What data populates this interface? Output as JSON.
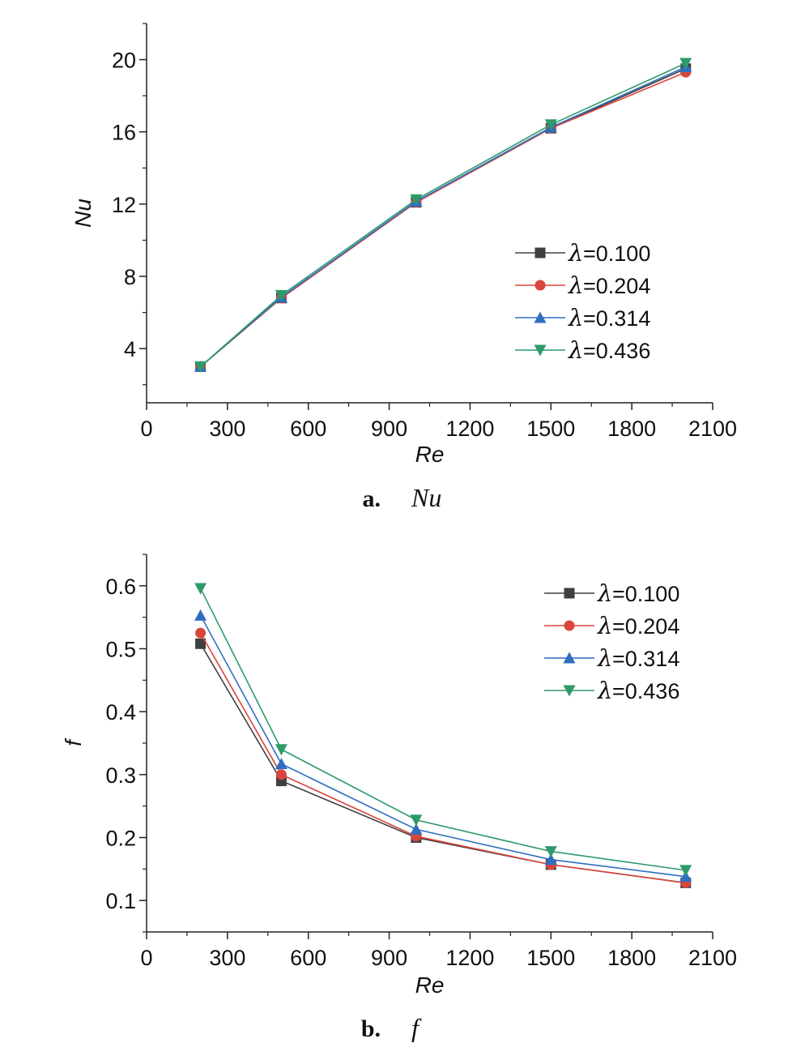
{
  "chart_data": [
    {
      "type": "line",
      "caption_letter": "a.",
      "caption_var": "Nu",
      "xlabel": "Re",
      "ylabel": "Nu",
      "xlim": [
        0,
        2100
      ],
      "ylim": [
        1,
        22
      ],
      "xticks": [
        0,
        300,
        600,
        900,
        1200,
        1500,
        1800,
        2100
      ],
      "yticks": [
        4,
        8,
        12,
        16,
        20
      ],
      "x": [
        200,
        500,
        1000,
        1500,
        2000
      ],
      "legend_position": "bottom-right",
      "series": [
        {
          "name": "=0.100",
          "color": "#404040",
          "marker": "square",
          "values": [
            3.0,
            6.8,
            12.1,
            16.2,
            19.5
          ]
        },
        {
          "name": "=0.204",
          "color": "#d9453c",
          "marker": "circle",
          "values": [
            3.0,
            6.8,
            12.1,
            16.2,
            19.3
          ]
        },
        {
          "name": "=0.314",
          "color": "#2f6fbf",
          "marker": "triangle-up",
          "values": [
            3.0,
            6.85,
            12.15,
            16.25,
            19.6
          ]
        },
        {
          "name": "=0.436",
          "color": "#2e9a6a",
          "marker": "triangle-down",
          "values": [
            3.0,
            6.95,
            12.25,
            16.4,
            19.8
          ]
        }
      ]
    },
    {
      "type": "line",
      "caption_letter": "b.",
      "caption_var": "f",
      "xlabel": "Re",
      "ylabel": "f",
      "xlim": [
        0,
        2100
      ],
      "ylim": [
        0.05,
        0.65
      ],
      "xticks": [
        0,
        300,
        600,
        900,
        1200,
        1500,
        1800,
        2100
      ],
      "yticks": [
        0.1,
        0.2,
        0.3,
        0.4,
        0.5,
        0.6
      ],
      "x": [
        200,
        500,
        1000,
        1500,
        2000
      ],
      "legend_position": "top-right",
      "series": [
        {
          "name": "=0.100",
          "color": "#404040",
          "marker": "square",
          "values": [
            0.508,
            0.29,
            0.2,
            0.157,
            0.128
          ]
        },
        {
          "name": "=0.204",
          "color": "#d9453c",
          "marker": "circle",
          "values": [
            0.525,
            0.3,
            0.202,
            0.157,
            0.128
          ]
        },
        {
          "name": "=0.314",
          "color": "#2f6fbf",
          "marker": "triangle-up",
          "values": [
            0.553,
            0.317,
            0.213,
            0.165,
            0.138
          ]
        },
        {
          "name": "=0.436",
          "color": "#2e9a6a",
          "marker": "triangle-down",
          "values": [
            0.596,
            0.34,
            0.228,
            0.178,
            0.148
          ]
        }
      ]
    }
  ]
}
